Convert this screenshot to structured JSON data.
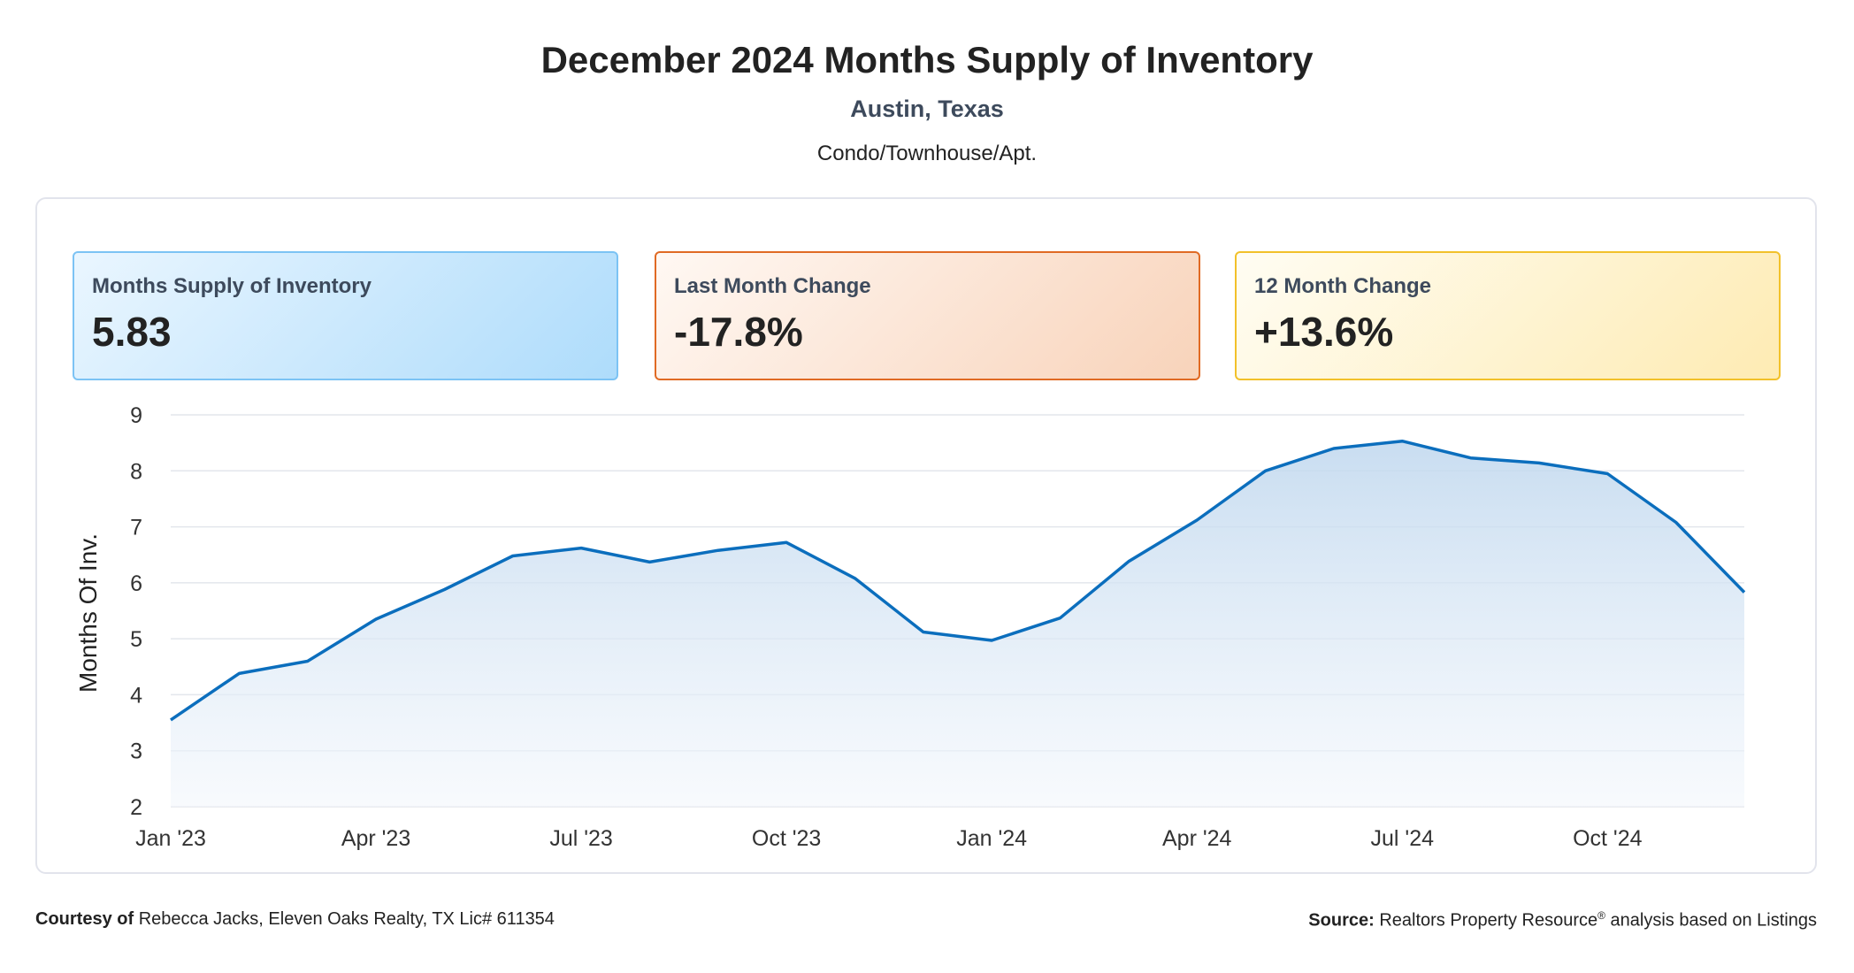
{
  "header": {
    "title": "December 2024 Months Supply of Inventory",
    "location": "Austin, Texas",
    "property_type": "Condo/Townhouse/Apt."
  },
  "cards": [
    {
      "label": "Months Supply of Inventory",
      "value": "5.83",
      "border_color": "#7cc3f4"
    },
    {
      "label": "Last Month Change",
      "value": "-17.8%",
      "border_color": "#e06a24"
    },
    {
      "label": "12 Month Change",
      "value": "+13.6%",
      "border_color": "#f2c12a"
    }
  ],
  "chart_data": {
    "type": "area",
    "ylabel": "Months Of Inv.",
    "xlabel": "",
    "ylim": [
      2,
      9
    ],
    "yticks": [
      2,
      3,
      4,
      5,
      6,
      7,
      8,
      9
    ],
    "x": [
      "Jan '23",
      "Feb '23",
      "Mar '23",
      "Apr '23",
      "May '23",
      "Jun '23",
      "Jul '23",
      "Aug '23",
      "Sep '23",
      "Oct '23",
      "Nov '23",
      "Dec '23",
      "Jan '24",
      "Feb '24",
      "Mar '24",
      "Apr '24",
      "May '24",
      "Jun '24",
      "Jul '24",
      "Aug '24",
      "Sep '24",
      "Oct '24",
      "Nov '24",
      "Dec '24"
    ],
    "xtick_labels": [
      "Jan '23",
      "Apr '23",
      "Jul '23",
      "Oct '23",
      "Jan '24",
      "Apr '24",
      "Jul '24",
      "Oct '24"
    ],
    "xtick_indices": [
      0,
      3,
      6,
      9,
      12,
      15,
      18,
      21
    ],
    "values": [
      3.55,
      4.38,
      4.6,
      5.35,
      5.88,
      6.48,
      6.62,
      6.37,
      6.58,
      6.72,
      6.08,
      5.12,
      4.97,
      5.37,
      6.38,
      7.12,
      8.0,
      8.4,
      8.53,
      8.23,
      8.14,
      7.95,
      7.08,
      5.83
    ],
    "line_color": "#0b6ebd",
    "fill_color": "#bfd7ee",
    "grid": true
  },
  "footer": {
    "courtesy_label": "Courtesy of",
    "courtesy_text": "Rebecca Jacks, Eleven Oaks Realty, TX Lic# 611354",
    "source_label": "Source:",
    "source_text": "Realtors Property Resource",
    "source_sup": "®",
    "source_suffix": "analysis based on Listings"
  }
}
